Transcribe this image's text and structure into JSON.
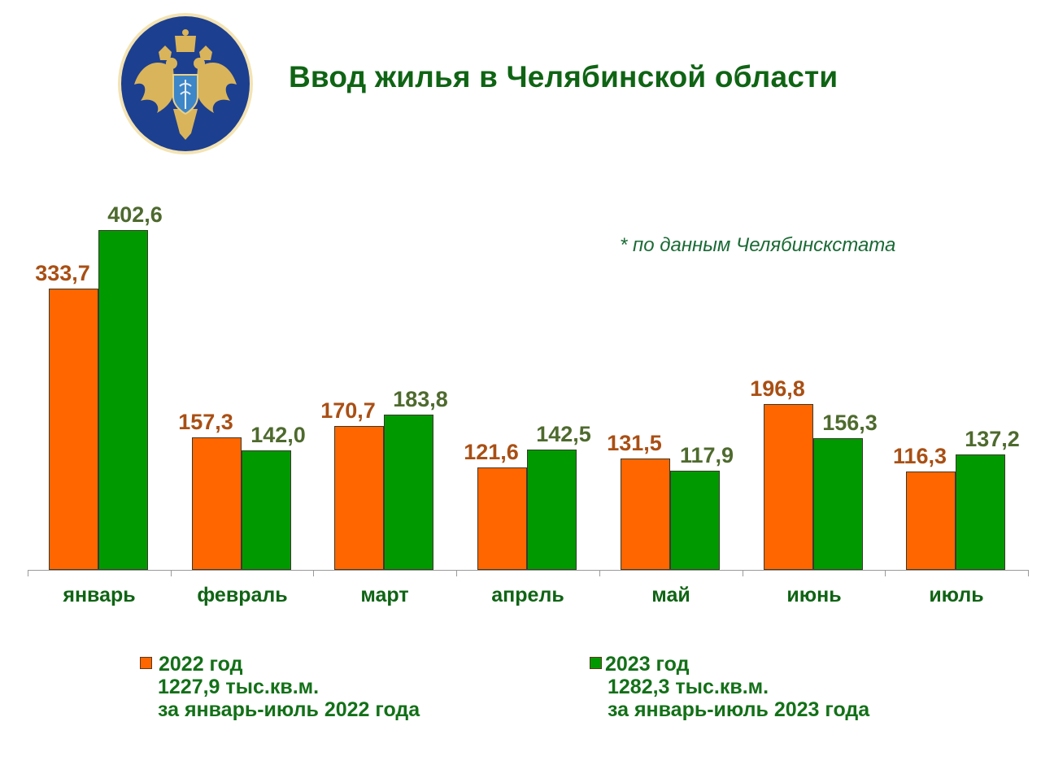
{
  "header": {
    "title": "Ввод жилья в Челябинской области",
    "emblem": "double-headed-eagle-emblem",
    "source_note": "* по данным Челябинскстата"
  },
  "colors": {
    "series_2022": "#ff6600",
    "series_2023": "#009900",
    "label_2022": "#a94f14",
    "label_2023": "#4e6a2e",
    "title_green": "#0f6414",
    "emblem_blue": "#1d3f8f",
    "emblem_gold": "#d9b45a"
  },
  "legend": [
    {
      "name": "2022 год",
      "total": "1227,9  тыс.кв.м.",
      "period": "за январь-июль 2022 года",
      "color": "#ff6600"
    },
    {
      "name": "2023 год",
      "total": "1282,3  тыс.кв.м.",
      "period": "за январь-июль 2023 года",
      "color": "#009900"
    }
  ],
  "labels": {
    "2022": [
      "333,7",
      "157,3",
      "170,7",
      "121,6",
      "131,5",
      "196,8",
      "116,3"
    ],
    "2023": [
      "402,6",
      "142,0",
      "183,8",
      "142,5",
      "117,9",
      "156,3",
      "137,2"
    ]
  },
  "chart_data": {
    "type": "bar",
    "title": "Ввод жилья в Челябинской области",
    "subtitle": "* по данным Челябинскстата",
    "categories": [
      "январь",
      "февраль",
      "март",
      "апрель",
      "май",
      "июнь",
      "июль"
    ],
    "series": [
      {
        "name": "2022 год",
        "values": [
          333.7,
          157.3,
          170.7,
          121.6,
          131.5,
          196.8,
          116.3
        ],
        "color": "#ff6600"
      },
      {
        "name": "2023 год",
        "values": [
          402.6,
          142.0,
          183.8,
          142.5,
          117.9,
          156.3,
          137.2
        ],
        "color": "#009900"
      }
    ],
    "totals": {
      "2022 год": 1227.9,
      "2023 год": 1282.3
    },
    "units": "тыс.кв.м.",
    "xlabel": "",
    "ylabel": "",
    "ylim": [
      0,
      420
    ],
    "grid": false,
    "y_axis_visible": false,
    "data_labels": true,
    "legend_position": "bottom"
  }
}
